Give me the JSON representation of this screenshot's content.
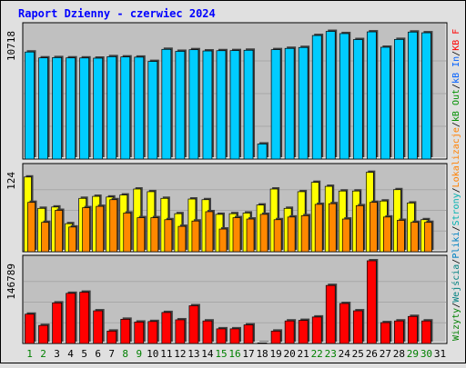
{
  "chart_data": {
    "type": "bar",
    "title": "Raport Dzienny -  czerwiec 2024",
    "days": [
      "1",
      "2",
      "3",
      "4",
      "5",
      "6",
      "7",
      "8",
      "9",
      "10",
      "11",
      "12",
      "13",
      "14",
      "15",
      "16",
      "17",
      "18",
      "19",
      "20",
      "21",
      "22",
      "23",
      "24",
      "25",
      "26",
      "27",
      "28",
      "29",
      "30",
      "31"
    ],
    "weekend_days": [
      "1",
      "2",
      "8",
      "9",
      "15",
      "16",
      "22",
      "23",
      "29",
      "30"
    ],
    "panels": [
      {
        "id": "top",
        "max_label": "10718",
        "max": 10718,
        "series": [
          {
            "name": "Wizyty",
            "color": "#00ccff",
            "values": [
              8765,
              8285,
              8307,
              8284,
              8278,
              8262,
              8382,
              8361,
              8345,
              7992,
              8984,
              8822,
              8955,
              8854,
              8875,
              8882,
              8911,
              1231,
              8960,
              9063,
              9137,
              10117,
              10455,
              10274,
              9786,
              10416,
              9155,
              9796,
              10400,
              10340,
              0
            ]
          }
        ]
      },
      {
        "id": "middle",
        "max_label": "124",
        "max": 124,
        "series": [
          {
            "name": "Strony",
            "color": "#ffff00",
            "values": [
              112,
              65,
              67,
              42,
              80,
              83,
              82,
              85,
              94,
              90,
              80,
              57,
              79,
              78,
              56,
              57,
              58,
              70,
              94,
              65,
              90,
              104,
              98,
              91,
              91,
              119,
              76,
              93,
              73,
              48,
              0
            ]
          },
          {
            "name": "Pliki",
            "color": "#ff8800",
            "values": [
              74,
              44,
              62,
              37,
              66,
              68,
              78,
              58,
              51,
              51,
              48,
              38,
              46,
              60,
              34,
              51,
              49,
              56,
              48,
              52,
              54,
              71,
              72,
              49,
              69,
              74,
              52,
              47,
              44,
              44,
              0
            ]
          }
        ]
      },
      {
        "id": "bottom",
        "max_label": "146789",
        "max": 146789,
        "series": [
          {
            "name": "KB F",
            "color": "#ff0000",
            "values": [
              52000,
              32000,
              72000,
              89000,
              91000,
              58000,
              22000,
              43000,
              38000,
              39000,
              55000,
              42000,
              67000,
              40000,
              26000,
              26000,
              33000,
              1000,
              22000,
              40000,
              41000,
              47000,
              103000,
              71000,
              58000,
              146789,
              37000,
              40000,
              48000,
              40000,
              0
            ]
          }
        ]
      }
    ],
    "right_legend": [
      {
        "text": "Wizyty",
        "color": "#008000"
      },
      {
        "text": "/",
        "color": "#000000"
      },
      {
        "text": "Wejścia",
        "color": "#008080"
      },
      {
        "text": "/",
        "color": "#000000"
      },
      {
        "text": "Pliki",
        "color": "#0080c0"
      },
      {
        "text": "/",
        "color": "#000000"
      },
      {
        "text": "Strony",
        "color": "#00b0b0"
      },
      {
        "text": "/",
        "color": "#000000"
      },
      {
        "text": "Lokalizacje",
        "color": "#ff8000"
      },
      {
        "text": "/",
        "color": "#000000"
      },
      {
        "text": "kB Out",
        "color": "#009000"
      },
      {
        "text": "/",
        "color": "#000000"
      },
      {
        "text": "kB In",
        "color": "#0060ff"
      },
      {
        "text": "/",
        "color": "#000000"
      },
      {
        "text": "KB F",
        "color": "#ff0000"
      }
    ],
    "colors": {
      "background": "#e0e0e0",
      "plot_bg": "#c0c0c0",
      "title": "#0000ff",
      "weekend_label": "#008000",
      "weekday_label": "#000000"
    }
  }
}
